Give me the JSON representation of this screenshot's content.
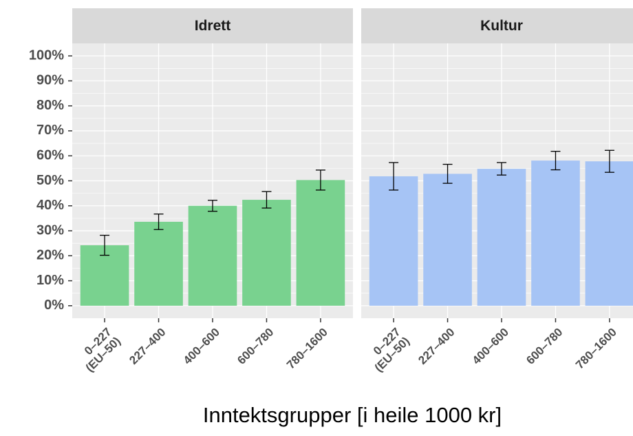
{
  "chart_data": {
    "type": "bar",
    "xlabel": "Inntektsgrupper [i heile 1000 kr]",
    "ylim": [
      -5,
      105
    ],
    "yticks": [
      {
        "value": 0,
        "label": "0%"
      },
      {
        "value": 10,
        "label": "10%"
      },
      {
        "value": 20,
        "label": "20%"
      },
      {
        "value": 30,
        "label": "30%"
      },
      {
        "value": 40,
        "label": "40%"
      },
      {
        "value": 50,
        "label": "50%"
      },
      {
        "value": 60,
        "label": "60%"
      },
      {
        "value": 70,
        "label": "70%"
      },
      {
        "value": 80,
        "label": "80%"
      },
      {
        "value": 90,
        "label": "90%"
      },
      {
        "value": 100,
        "label": "100%"
      }
    ],
    "grid": true,
    "facets": [
      {
        "title": "Idrett",
        "color": "#79d28f",
        "categories": [
          "0–227\n(EU–50)",
          "227–400",
          "400–600",
          "600–780",
          "780–1600"
        ],
        "values": [
          24.2,
          33.6,
          40.0,
          42.4,
          50.3
        ],
        "errors": [
          4.0,
          3.1,
          2.2,
          3.3,
          4.0
        ]
      },
      {
        "title": "Kultur",
        "color": "#a6c4f5",
        "categories": [
          "0–227\n(EU–50)",
          "227–400",
          "400–600",
          "600–780",
          "780–1600"
        ],
        "values": [
          51.8,
          52.8,
          54.8,
          58.1,
          57.8
        ],
        "errors": [
          5.5,
          3.8,
          2.5,
          3.7,
          4.4
        ]
      }
    ]
  }
}
